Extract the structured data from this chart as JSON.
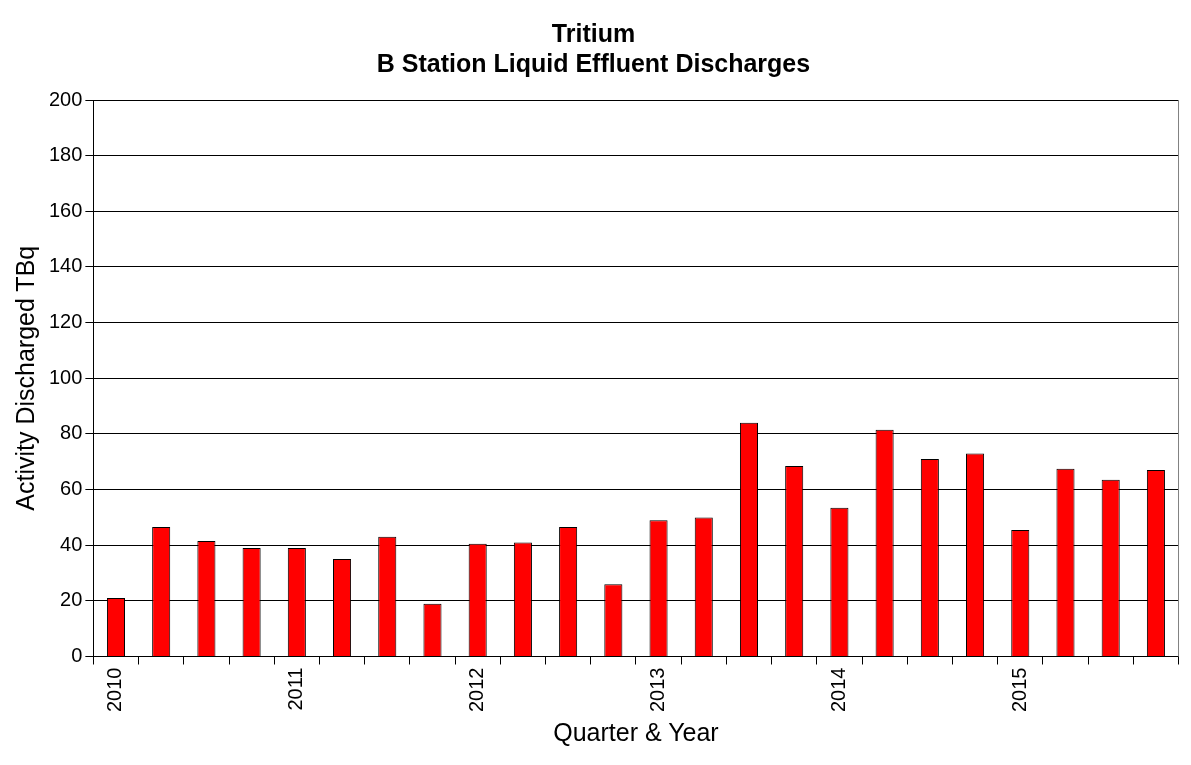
{
  "chart_data": {
    "type": "bar",
    "title": [
      "Tritium",
      "B Station Liquid Effluent Discharges"
    ],
    "xlabel": "Quarter & Year",
    "ylabel": "Activity Discharged TBq",
    "categories": [
      "2010",
      null,
      null,
      null,
      "2011",
      null,
      null,
      null,
      "2012",
      null,
      null,
      null,
      "2013",
      null,
      null,
      null,
      "2014",
      null,
      null,
      null,
      "2015",
      null,
      null,
      null
    ],
    "values": [
      21,
      46.5,
      41.5,
      39,
      39,
      35,
      43,
      19,
      40.5,
      41,
      46.5,
      26,
      49,
      50,
      84,
      68.5,
      53.5,
      81.5,
      71,
      73,
      45.5,
      67.5,
      63.5,
      67
    ],
    "color": "#ff0000",
    "ylim": [
      0,
      200
    ],
    "yticks": [
      0,
      20,
      40,
      60,
      80,
      100,
      120,
      140,
      160,
      180,
      200
    ],
    "grid": "y",
    "legend": false
  }
}
